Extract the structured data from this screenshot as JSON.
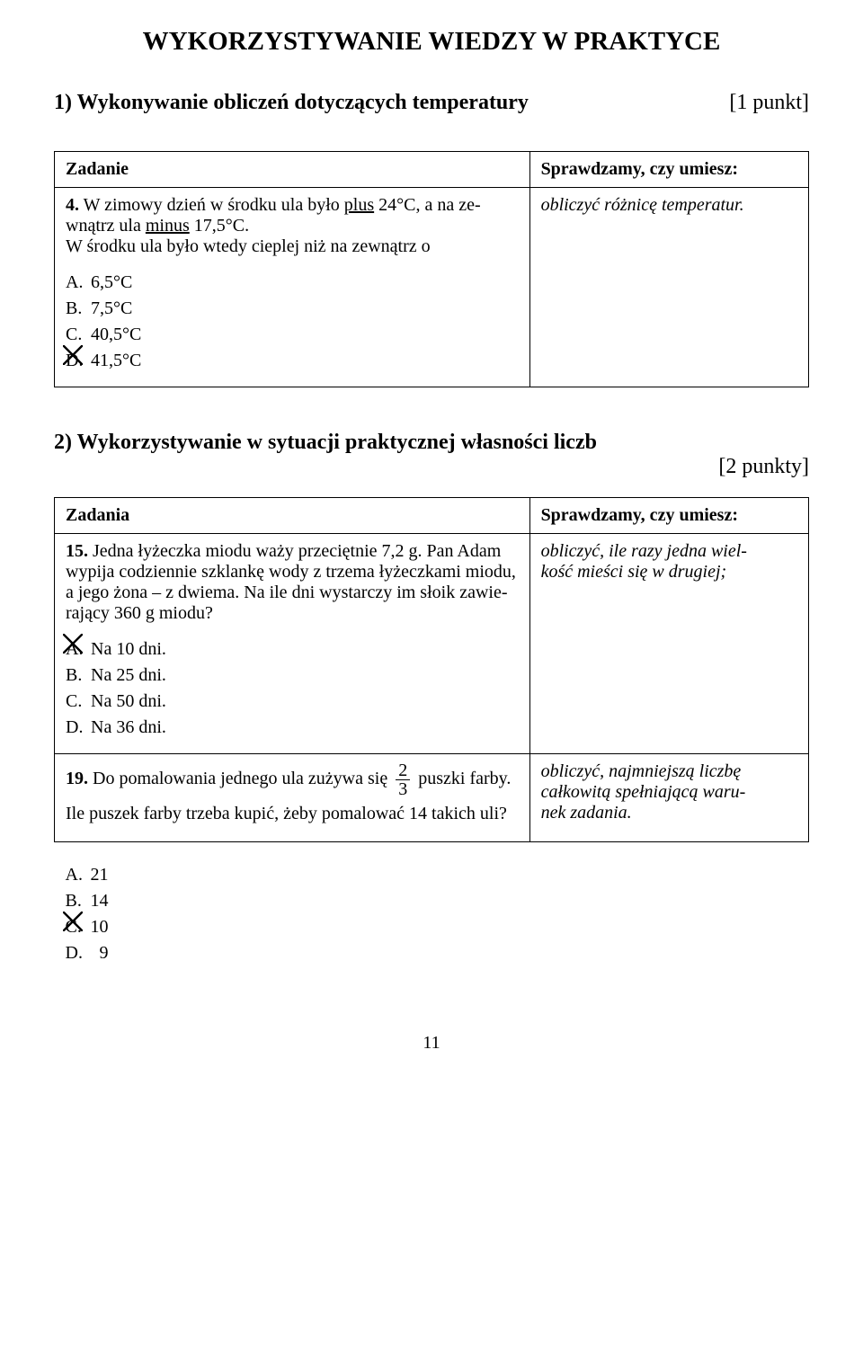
{
  "title": "WYKORZYSTYWANIE WIEDZY W PRAKTYCE",
  "section1": {
    "heading": "1) Wykonywanie obliczeń dotyczących temperatury",
    "points": "[1 punkt]",
    "left_header": "Zadanie",
    "right_header": "Sprawdzamy, czy umiesz:",
    "q4": {
      "number": "4.",
      "text_a": " W zimowy dzień w środku ula było ",
      "underline1": "plus",
      "text_b": " 24°C, a na ze-\nwnątrz ula ",
      "underline2": "minus",
      "text_c": " 17,5°C.\nW środku ula było wtedy cieplej niż na zewnątrz o",
      "options": [
        {
          "letter": "A.",
          "text": "6,5°C",
          "strike": false
        },
        {
          "letter": "B.",
          "text": "7,5°C",
          "strike": false
        },
        {
          "letter": "C.",
          "text": "40,5°C",
          "strike": false
        },
        {
          "letter": "D.",
          "text": "41,5°C",
          "strike": true
        }
      ],
      "objective": "obliczyć różnicę temperatur."
    }
  },
  "section2": {
    "heading": "2) Wykorzystywanie w sytuacji praktycznej własności liczb",
    "points": "[2 punkty]",
    "left_header": "Zadania",
    "right_header": "Sprawdzamy, czy umiesz:",
    "q15": {
      "number": "15.",
      "text": " Jedna łyżeczka miodu waży przeciętnie 7,2 g. Pan Adam wypija codziennie szklankę wody z trzema łyżeczkami miodu, a jego żona – z dwiema. Na ile dni wystarczy im słoik zawie-\nrający 360 g miodu?",
      "options": [
        {
          "letter": "A.",
          "text": "Na 10 dni.",
          "strike": true
        },
        {
          "letter": "B.",
          "text": "Na 25 dni.",
          "strike": false
        },
        {
          "letter": "C.",
          "text": "Na 50 dni.",
          "strike": false
        },
        {
          "letter": "D.",
          "text": "Na 36 dni.",
          "strike": false
        }
      ],
      "objective": "obliczyć, ile razy jedna wiel-\nkość mieści się w drugiej;"
    },
    "q19": {
      "number": "19.",
      "text_a": " Do pomalowania jednego ula zużywa się ",
      "frac_num": "2",
      "frac_den": "3",
      "text_b": " puszki farby.",
      "text_c": "Ile puszek farby trzeba kupić, żeby pomalować 14 takich uli?",
      "options": [
        {
          "letter": "A.",
          "text": "21",
          "strike": false
        },
        {
          "letter": "B.",
          "text": "14",
          "strike": false
        },
        {
          "letter": "C.",
          "text": "10",
          "strike": true
        },
        {
          "letter": "D.",
          "text": "  9",
          "strike": false
        }
      ],
      "objective": "obliczyć, najmniejszą liczbę całkowitą spełniającą waru-\nnek zadania."
    }
  },
  "page_number": "11"
}
